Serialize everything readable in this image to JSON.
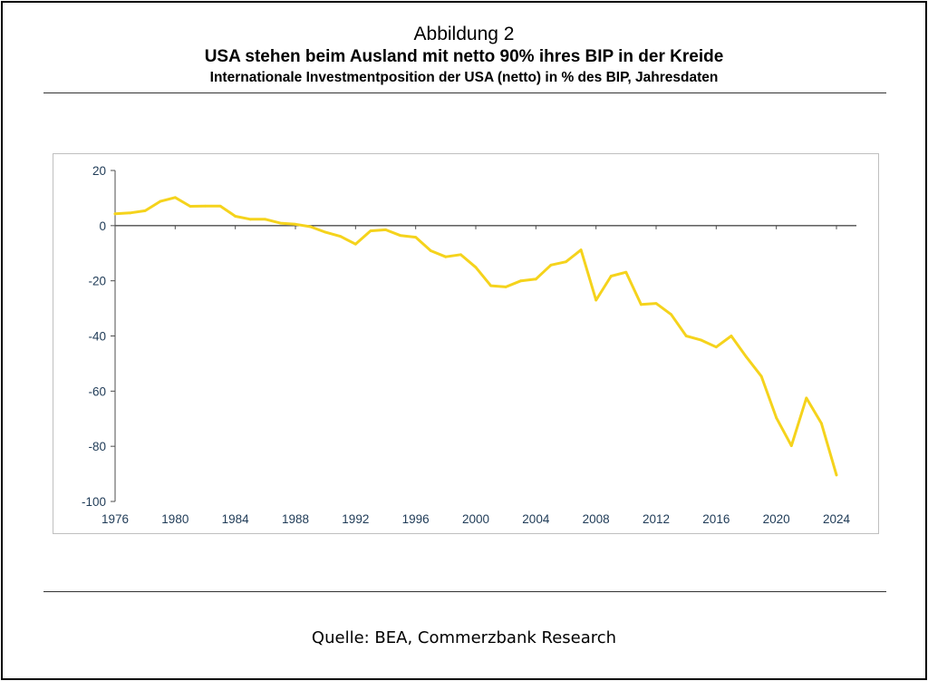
{
  "figure": {
    "label": "Abbildung 2",
    "title": "USA stehen beim Ausland mit netto 90% ihres BIP in der Kreide",
    "subtitle": "Internationale Investmentposition der USA (netto) in % des BIP, Jahresdaten",
    "source": "Quelle: BEA, Commerzbank Research"
  },
  "chart_data": {
    "type": "line",
    "title": "USA stehen beim Ausland mit netto 90% ihres BIP in der Kreide",
    "subtitle": "Internationale Investmentposition der USA (netto) in % des BIP, Jahresdaten",
    "xlabel": "",
    "ylabel": "",
    "xlim": [
      1976,
      2024
    ],
    "ylim": [
      -100,
      20
    ],
    "xticks": [
      1976,
      1980,
      1984,
      1988,
      1992,
      1996,
      2000,
      2004,
      2008,
      2012,
      2016,
      2020,
      2024
    ],
    "yticks": [
      20,
      0,
      -20,
      -40,
      -60,
      -80,
      -100
    ],
    "grid": false,
    "legend": "none",
    "line_color": "#f5d31c",
    "axis_color": "#4d4d4d",
    "tick_label_color": "#1f3b57",
    "series": [
      {
        "x": [
          1976,
          1977,
          1978,
          1979,
          1980,
          1981,
          1982,
          1983,
          1984,
          1985,
          1986,
          1987,
          1988,
          1989,
          1990,
          1991,
          1992,
          1993,
          1994,
          1995,
          1996,
          1997,
          1998,
          1999,
          2000,
          2001,
          2002,
          2003,
          2004,
          2005,
          2006,
          2007,
          2008,
          2009,
          2010,
          2011,
          2012,
          2013,
          2014,
          2015,
          2016,
          2017,
          2018,
          2019,
          2020,
          2021,
          2022,
          2023,
          2024
        ],
        "values": [
          4.3,
          4.6,
          5.4,
          8.8,
          10.2,
          7.0,
          7.1,
          7.1,
          3.4,
          2.3,
          2.3,
          0.9,
          0.5,
          -0.4,
          -2.4,
          -3.9,
          -6.7,
          -1.9,
          -1.5,
          -3.6,
          -4.2,
          -9.1,
          -11.3,
          -10.5,
          -15.1,
          -21.8,
          -22.2,
          -20.0,
          -19.4,
          -14.3,
          -13.1,
          -8.8,
          -27.0,
          -18.3,
          -16.9,
          -28.6,
          -28.2,
          -32.2,
          -40.0,
          -41.5,
          -44.0,
          -40.0,
          -47.6,
          -54.6,
          -69.7,
          -79.8,
          -62.5,
          -71.7,
          -90.4
        ]
      }
    ]
  }
}
